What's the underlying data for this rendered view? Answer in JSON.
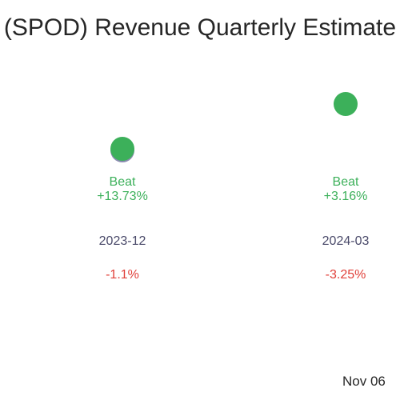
{
  "chart_data": {
    "type": "scatter",
    "title": "(SPOD) Revenue Quarterly Estimate",
    "categories": [
      "2023-12",
      "2024-03"
    ],
    "series": [
      {
        "values": [
          3.48,
          3.58
        ]
      }
    ],
    "annotations": [
      {
        "result": "Beat",
        "surprise": "+13.73%",
        "period": "2023-12",
        "change": "-1.1%"
      },
      {
        "result": "Beat",
        "surprise": "+3.16%",
        "period": "2024-03",
        "change": "-3.25%"
      }
    ],
    "footer": "Nov 06",
    "grid": false,
    "colors": {
      "beat": "#3cb05a",
      "estimate_marker": "#8a8ab0",
      "period": "#4a4a6a",
      "change_negative": "#e0403a",
      "text": "#262626"
    }
  }
}
